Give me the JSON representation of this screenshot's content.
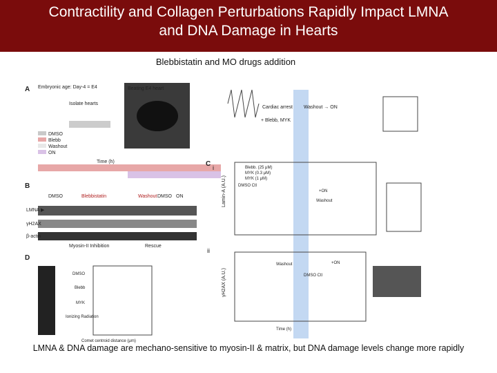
{
  "header": {
    "title_lines": [
      "Contractility and Collagen Perturbations Rapidly Impact LMNA",
      "and DNA Damage in Hearts"
    ]
  },
  "subtitle": "Blebbistatin and MO drugs addition",
  "figure": {
    "panel_a": {
      "label": "A",
      "texts": [
        "Embryonic age: Day-4 = E4",
        "Isolate hearts",
        "Beating E4 heart",
        "Cardiac arrest",
        "+ Blebb, MYK",
        "Washout → ON",
        "DMSO",
        "Blebb",
        "Washout",
        "ON",
        "Time (h)"
      ]
    },
    "panel_b": {
      "label": "B",
      "texts": [
        "DMSO",
        "Blebbistatin",
        "Washout",
        "DMSO",
        "ON",
        "LMNA ▶",
        "γH2AX",
        "β-actin",
        "Myosin-II Inhibition",
        "Rescue"
      ]
    },
    "panel_c": {
      "label": "C",
      "sub_i": "i",
      "sub_ii": "ii",
      "legend": [
        "Blebb. (25 μM)",
        "MYK (0.3 μM)",
        "MYK (1 μM)"
      ],
      "texts_i": [
        "Lamin-A (A.U.)",
        "DMSO Ctl",
        "Washout",
        "+ON"
      ],
      "texts_ii": [
        "γH2AX (A.U.)",
        "Washout",
        "+ON",
        "DMSO Ctl",
        "Time (h)"
      ]
    },
    "panel_d": {
      "label": "D",
      "rows": [
        "DMSO",
        "Blebb",
        "MYK",
        "Ionizing Radiation"
      ],
      "xlabel": "Comet centroid distance (μm)"
    }
  },
  "caption": "LMNA & DNA damage are mechano-sensitive to myosin-II & matrix, but DNA damage levels change more rapidly"
}
